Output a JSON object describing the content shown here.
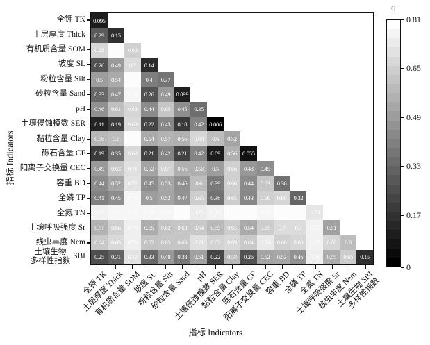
{
  "chart_data": {
    "type": "heatmap",
    "description": "Lower-triangular grayscale heatmap (geodetector q values) among soil indicators",
    "xlabel": "指标 Indicators",
    "ylabel": "指标 Indicators",
    "categories": [
      "全钾 TK",
      "土层厚度 Thick",
      "有机质含量 SOM",
      "坡度 SL",
      "粉粒含量 Silt",
      "砂粒含量 Sand",
      "pH",
      "土壤侵蚀模数 SER",
      "黏粒含量 Clay",
      "砾石含量 CF",
      "阳离子交换量 CEC",
      "容重 BD",
      "全磷 TP",
      "全氮 TN",
      "土壤呼吸强度 Sr",
      "线虫丰度 Nem",
      "土壤生物多样性指数 SBI"
    ],
    "y_tick_label_special": {
      "index": 16,
      "cn_lines": [
        "土壤生物",
        "多样性指数"
      ],
      "en": "SBI"
    },
    "x_tick_label_special": {
      "index": 16,
      "lines": [
        "土壤生物 SBI",
        "多样性指数"
      ]
    },
    "colorbar": {
      "title": "q",
      "min": 0,
      "max": 0.81,
      "tick_values": [
        0.81,
        0.65,
        0.49,
        0.33,
        0.17,
        0
      ],
      "tick_labels": [
        "0.81",
        "0.65",
        "0.49",
        "0.33",
        "0.17",
        "0"
      ],
      "color_low": "#000000",
      "color_high": "#ffffff",
      "steps": 27
    },
    "blank_label_value_estimate": 0.8,
    "rows": [
      {
        "name": "全钾 TK",
        "values": [
          0.095
        ],
        "labels": [
          "0.095"
        ]
      },
      {
        "name": "土层厚度 Thick",
        "values": [
          0.29,
          0.15
        ],
        "labels": [
          "0.29",
          "0.15"
        ]
      },
      {
        "name": "有机质含量 SOM",
        "values": [
          0.68,
          0.8,
          0.66
        ],
        "labels": [
          "0.68",
          "",
          "0.66"
        ]
      },
      {
        "name": "坡度 SL",
        "values": [
          0.26,
          0.49,
          0.7,
          0.14
        ],
        "labels": [
          "0.26",
          "0.49",
          "0.7",
          "0.14"
        ]
      },
      {
        "name": "粉粒含量 Silt",
        "values": [
          0.5,
          0.54,
          0.8,
          0.4,
          0.37
        ],
        "labels": [
          "0.5",
          "0.54",
          "",
          "0.4",
          "0.37"
        ]
      },
      {
        "name": "砂粒含量 Sand",
        "values": [
          0.33,
          0.47,
          0.78,
          0.26,
          0.49,
          0.099
        ],
        "labels": [
          "0.33",
          "0.47",
          "0.78",
          "0.26",
          "0.49",
          "0.099"
        ]
      },
      {
        "name": "pH",
        "values": [
          0.46,
          0.61,
          0.68,
          0.44,
          0.63,
          0.45,
          0.35
        ],
        "labels": [
          "0.46",
          "0.61",
          "0.68",
          "0.44",
          "0.63",
          "0.45",
          "0.35"
        ]
      },
      {
        "name": "土壤侵蚀模数 SER",
        "values": [
          0.11,
          0.19,
          0.69,
          0.22,
          0.43,
          0.18,
          0.42,
          0.006
        ],
        "labels": [
          "0.11",
          "0.19",
          "0.69",
          "0.22",
          "0.43",
          "0.18",
          "0.42",
          "0.006"
        ]
      },
      {
        "name": "黏粒含量 Clay",
        "values": [
          0.58,
          0.6,
          0.8,
          0.54,
          0.57,
          0.56,
          0.68,
          0.6,
          0.52
        ],
        "labels": [
          "0.58",
          "0.6",
          "",
          "0.54",
          "0.57",
          "0.56",
          "0.68",
          "0.6",
          "0.52"
        ]
      },
      {
        "name": "砾石含量 CF",
        "values": [
          0.19,
          0.35,
          0.69,
          0.21,
          0.42,
          0.21,
          0.42,
          0.09,
          0.56,
          0.055
        ],
        "labels": [
          "0.19",
          "0.35",
          "0.69",
          "0.21",
          "0.42",
          "0.21",
          "0.42",
          "0.09",
          "0.56",
          "0.055"
        ]
      },
      {
        "name": "阳离子交换量 CEC",
        "values": [
          0.49,
          0.63,
          0.71,
          0.52,
          0.67,
          0.56,
          0.56,
          0.5,
          0.66,
          0.48,
          0.45
        ],
        "labels": [
          "0.49",
          "0.63",
          "0.71",
          "0.52",
          "0.67",
          "0.56",
          "0.56",
          "0.5",
          "0.66",
          "0.48",
          "0.45"
        ]
      },
      {
        "name": "容重 BD",
        "values": [
          0.44,
          0.52,
          0.72,
          0.45,
          0.53,
          0.46,
          0.6,
          0.39,
          0.66,
          0.44,
          0.63,
          0.36
        ],
        "labels": [
          "0.44",
          "0.52",
          "0.72",
          "0.45",
          "0.53",
          "0.46",
          "0.6",
          "0.39",
          "0.66",
          "0.44",
          "0.63",
          "0.36"
        ]
      },
      {
        "name": "全磷 TP",
        "values": [
          0.41,
          0.45,
          0.78,
          0.5,
          0.52,
          0.47,
          0.65,
          0.36,
          0.65,
          0.43,
          0.66,
          0.68,
          0.32
        ],
        "labels": [
          "0.41",
          "0.45",
          "0.78",
          "0.5",
          "0.52",
          "0.47",
          "0.65",
          "0.36",
          "0.65",
          "0.43",
          "0.66",
          "0.68",
          "0.32"
        ]
      },
      {
        "name": "全氮 TN",
        "values": [
          0.77,
          0.78,
          0.78,
          0.78,
          0.78,
          0.8,
          0.75,
          0.77,
          0.8,
          0.8,
          0.78,
          0.8,
          0.8,
          0.73
        ],
        "labels": [
          "0.77",
          "0.78",
          "0.78",
          "0.78",
          "0.78",
          "",
          "0.75",
          "0.77",
          "",
          "",
          "0.78",
          "",
          "",
          "0.73"
        ]
      },
      {
        "name": "土壤呼吸强度 Sr",
        "values": [
          0.57,
          0.66,
          0.76,
          0.55,
          0.62,
          0.63,
          0.64,
          0.59,
          0.65,
          0.54,
          0.65,
          0.7,
          0.7,
          0.77,
          0.51
        ],
        "labels": [
          "0.57",
          "0.66",
          "0.76",
          "0.55",
          "0.62",
          "0.63",
          "0.64",
          "0.59",
          "0.65",
          "0.54",
          "0.65",
          "0.7",
          "0.7",
          "0.77",
          "0.51"
        ]
      },
      {
        "name": "线虫丰度 Nem",
        "values": [
          0.64,
          0.69,
          0.76,
          0.62,
          0.63,
          0.63,
          0.71,
          0.67,
          0.69,
          0.64,
          0.74,
          0.66,
          0.68,
          0.77,
          0.68,
          0.6
        ],
        "labels": [
          "0.64",
          "0.69",
          "0.76",
          "0.62",
          "0.63",
          "0.63",
          "0.71",
          "0.67",
          "0.69",
          "0.64",
          "0.74",
          "0.66",
          "0.68",
          "0.77",
          "0.68",
          "0.6"
        ]
      },
      {
        "name": "土壤生物多样性指数 SBI",
        "values": [
          0.25,
          0.31,
          0.72,
          0.33,
          0.48,
          0.38,
          0.51,
          0.22,
          0.58,
          0.26,
          0.52,
          0.53,
          0.46,
          0.76,
          0.55,
          0.65,
          0.15
        ],
        "labels": [
          "0.25",
          "0.31",
          "0.72",
          "0.33",
          "0.48",
          "0.38",
          "0.51",
          "0.22",
          "0.58",
          "0.26",
          "0.52",
          "0.53",
          "0.46",
          "0.76",
          "0.55",
          "0.65",
          "0.15"
        ]
      }
    ]
  }
}
